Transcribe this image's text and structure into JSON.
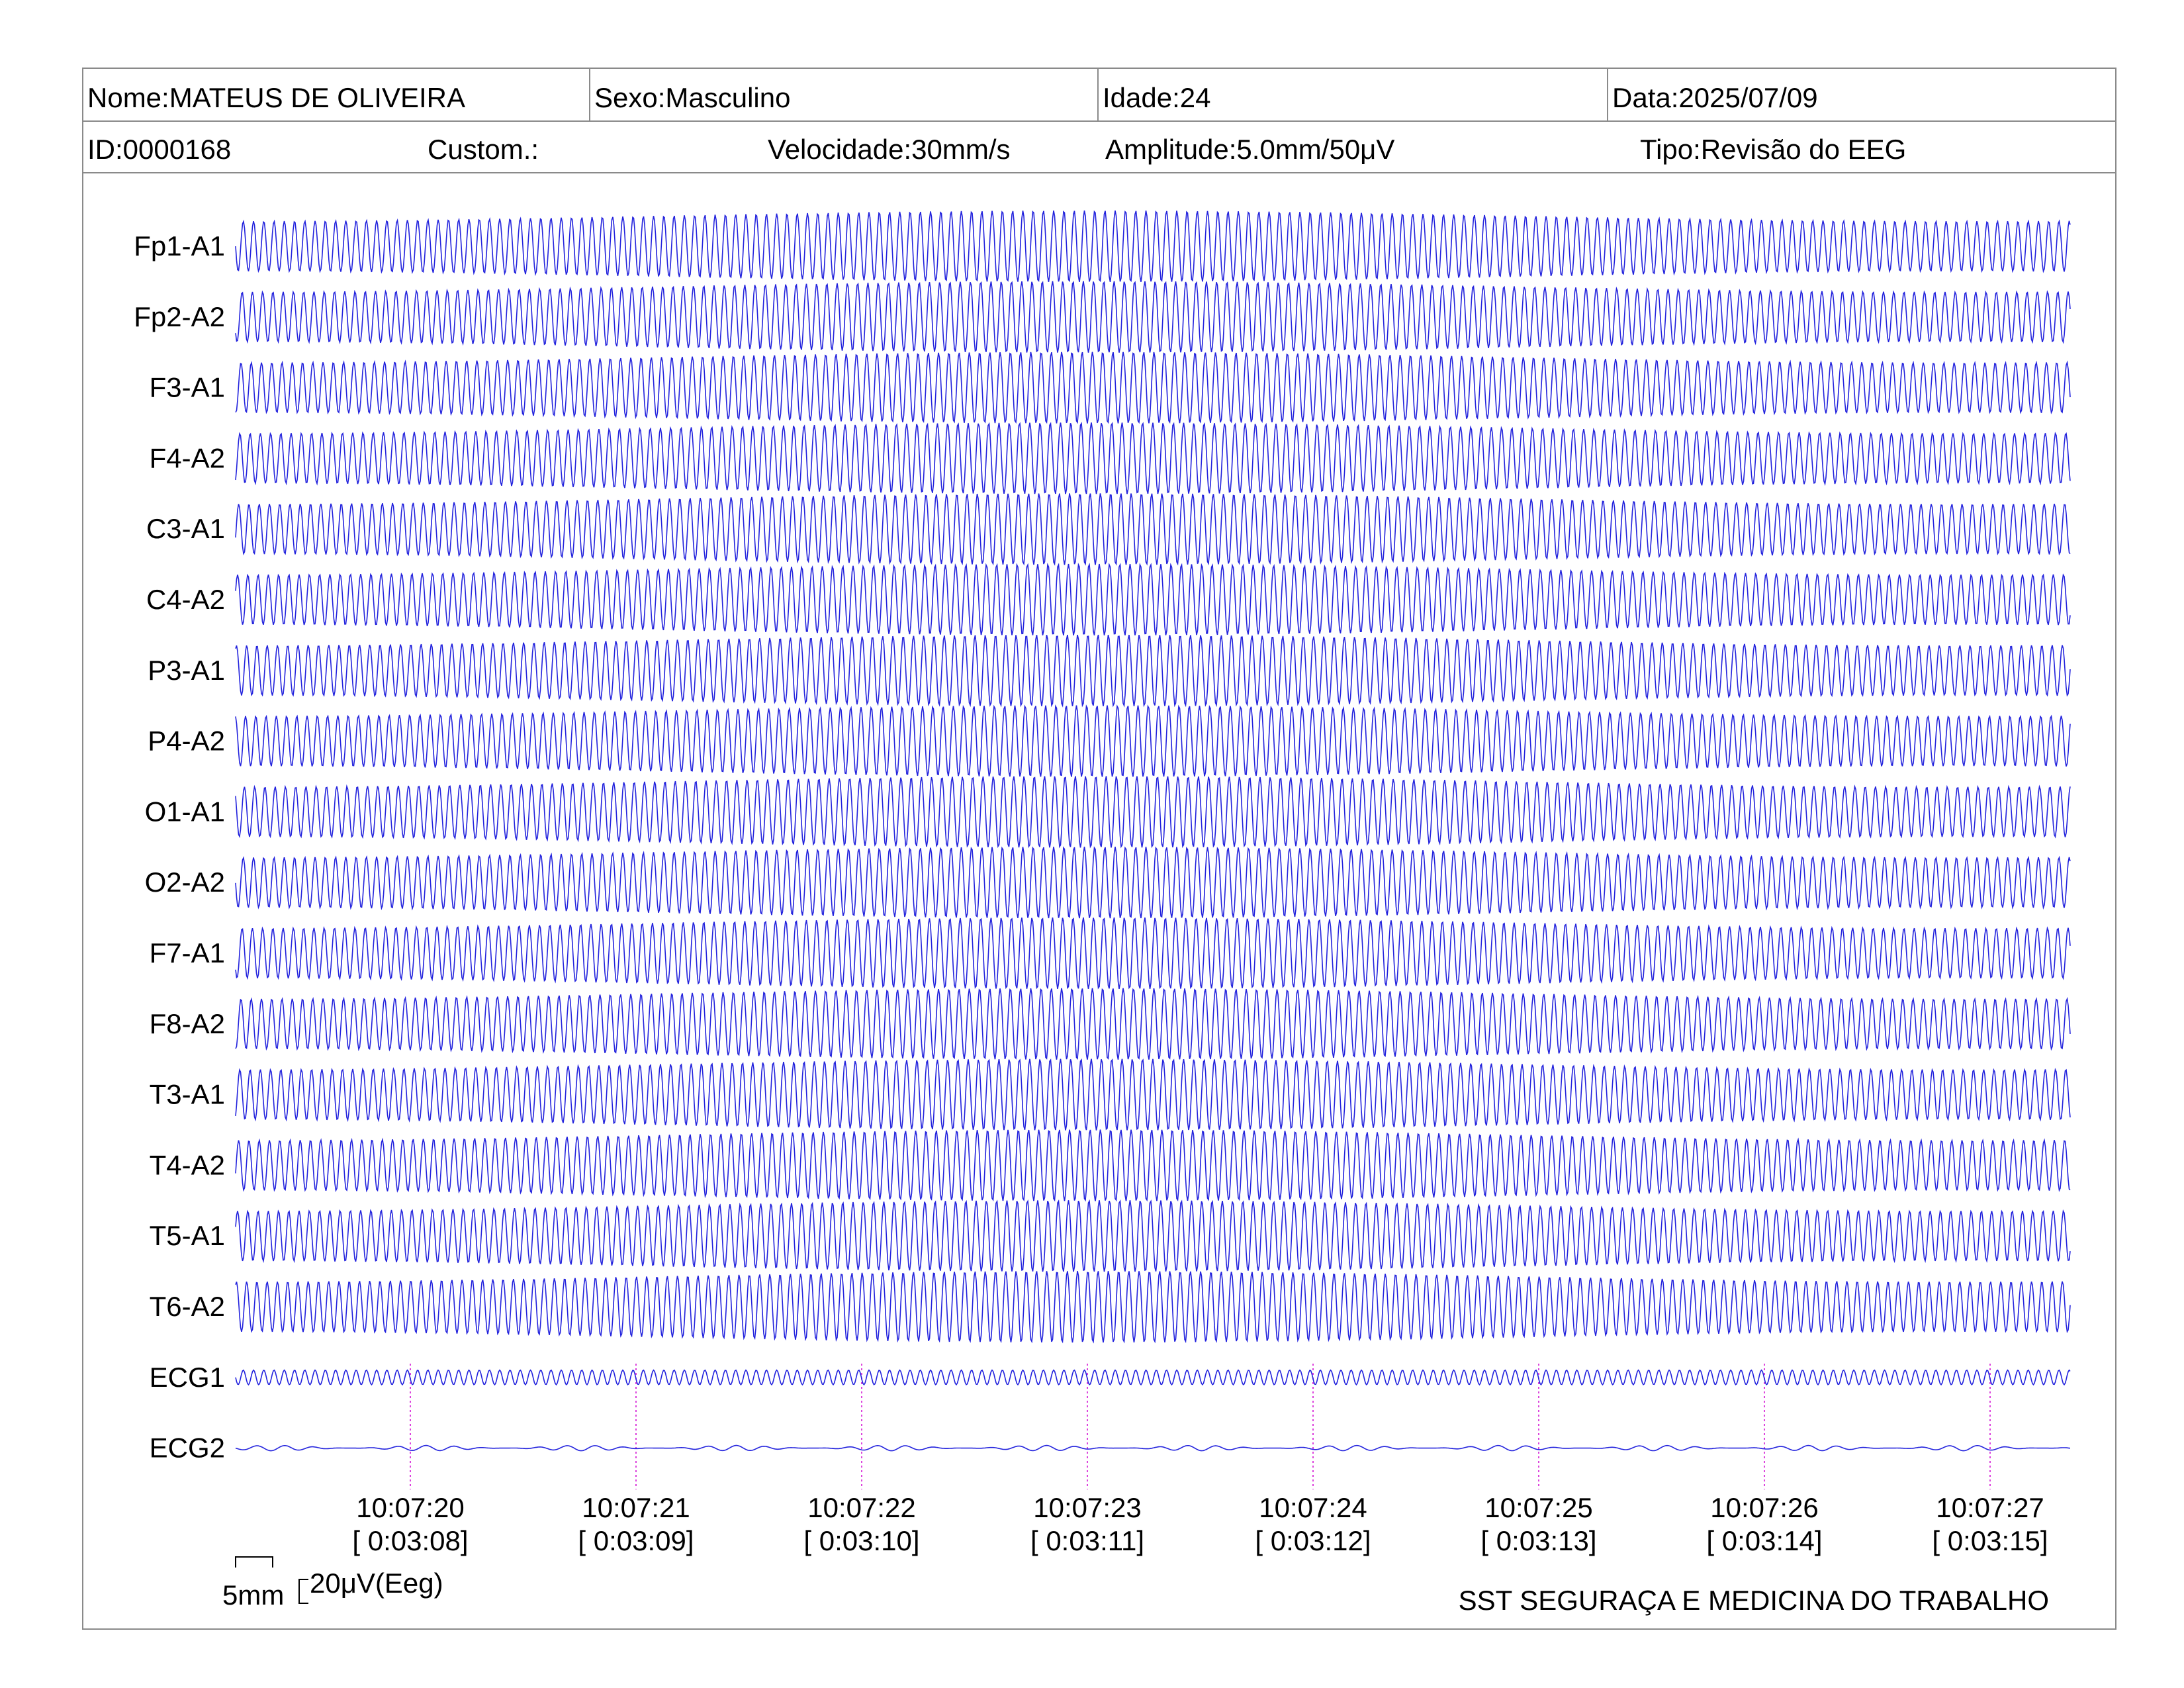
{
  "header": {
    "nome": "Nome:MATEUS DE OLIVEIRA",
    "sexo": "Sexo:Masculino",
    "idade": "Idade:24",
    "data": "Data:2025/07/09",
    "id": "ID:0000168",
    "custom": "Custom.:",
    "velocidade": "Velocidade:30mm/s",
    "amplitude": "Amplitude:5.0mm/50μV",
    "tipo": "Tipo:Revisão do EEG"
  },
  "chart_data": {
    "type": "line",
    "channels": [
      "Fp1-A1",
      "Fp2-A2",
      "F3-A1",
      "F4-A2",
      "C3-A1",
      "C4-A2",
      "P3-A1",
      "P4-A2",
      "O1-A1",
      "O2-A2",
      "F7-A1",
      "F8-A2",
      "T3-A1",
      "T4-A2",
      "T5-A1",
      "T6-A2",
      "ECG1",
      "ECG2"
    ],
    "time_marks": [
      {
        "clock": "10:07:20",
        "elapsed": "[ 0:03:08]"
      },
      {
        "clock": "10:07:21",
        "elapsed": "[ 0:03:09]"
      },
      {
        "clock": "10:07:22",
        "elapsed": "[ 0:03:10]"
      },
      {
        "clock": "10:07:23",
        "elapsed": "[ 0:03:11]"
      },
      {
        "clock": "10:07:24",
        "elapsed": "[ 0:03:12]"
      },
      {
        "clock": "10:07:25",
        "elapsed": "[ 0:03:13]"
      },
      {
        "clock": "10:07:26",
        "elapsed": "[ 0:03:14]"
      },
      {
        "clock": "10:07:27",
        "elapsed": "[ 0:03:15]"
      }
    ],
    "waveform": {
      "eeg_cycles_per_second": 22,
      "ecg1_cycles_per_second": 22,
      "ecg2_cycles_per_second": 8
    },
    "trace_color": "#2222dd",
    "marker_color": "#dd44dd"
  },
  "scale": {
    "time_label": "5mm",
    "amplitude_label": "20μV(Eeg)"
  },
  "footer": {
    "organization": "SST SEGURAÇA E MEDICINA DO TRABALHO"
  }
}
